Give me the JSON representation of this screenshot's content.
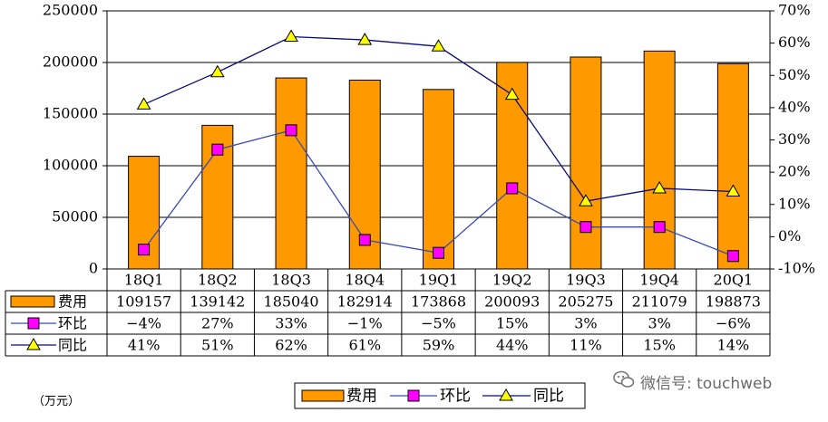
{
  "chart_data": {
    "type": "bar",
    "categories": [
      "18Q1",
      "18Q2",
      "18Q3",
      "18Q4",
      "19Q1",
      "19Q2",
      "19Q3",
      "19Q4",
      "20Q1"
    ],
    "series": [
      {
        "name": "费用",
        "type": "bar",
        "axis": "left",
        "values": [
          109157,
          139142,
          185040,
          182914,
          173868,
          200093,
          205275,
          211079,
          198873
        ]
      },
      {
        "name": "环比",
        "type": "line",
        "axis": "right",
        "values": [
          -4,
          27,
          33,
          -1,
          -5,
          15,
          3,
          3,
          -6
        ],
        "labels": [
          "-4%",
          "27%",
          "33%",
          "-1%",
          "-5%",
          "15%",
          "3%",
          "3%",
          "-6%"
        ]
      },
      {
        "name": "同比",
        "type": "line",
        "axis": "right",
        "values": [
          41,
          51,
          62,
          61,
          59,
          44,
          11,
          15,
          14
        ],
        "labels": [
          "41%",
          "51%",
          "62%",
          "61%",
          "59%",
          "44%",
          "11%",
          "15%",
          "14%"
        ]
      }
    ],
    "ylim": [
      0,
      250000
    ],
    "y_ticks": [
      "0",
      "50000",
      "100000",
      "150000",
      "200000",
      "250000"
    ],
    "y2lim": [
      -10,
      70
    ],
    "y2_ticks": [
      "-10%",
      "0%",
      "10%",
      "20%",
      "30%",
      "40%",
      "50%",
      "60%",
      "70%"
    ],
    "data_table": true,
    "legend_position": "bottom-center",
    "grid": true
  },
  "unit_label": "（万元）",
  "watermark": "微信号: touchweb",
  "colors": {
    "bar": "#ff9900",
    "bar_edge": "#000000",
    "mom": "#ff00ff",
    "mom_line": "#3a4ab8",
    "yoy": "#ffff00",
    "yoy_line": "#0a0a7a"
  }
}
